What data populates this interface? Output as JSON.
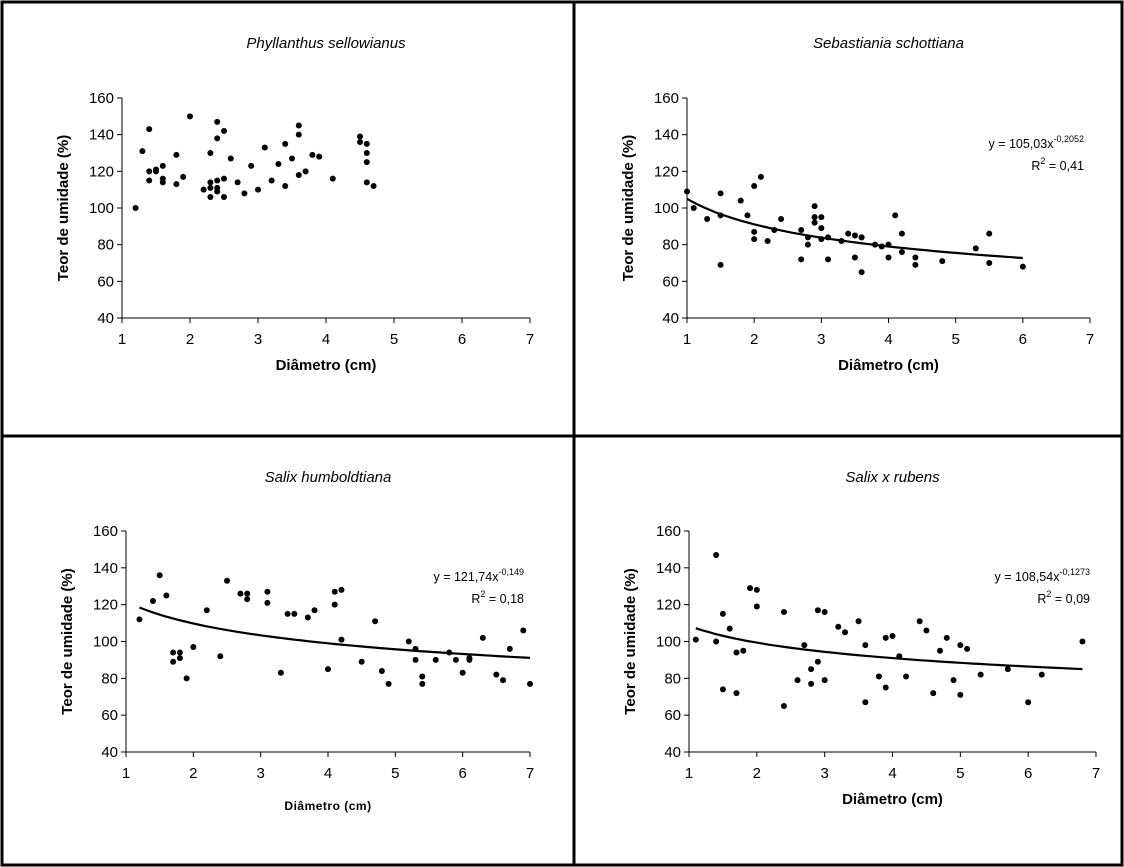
{
  "chart_data": [
    {
      "type": "scatter",
      "title": "Phyllanthus sellowianus",
      "xlabel": "Diâmetro (cm)",
      "ylabel": "Teor de umidade (%)",
      "xlim": [
        1,
        7
      ],
      "ylim": [
        40,
        160
      ],
      "xticks": [
        "1",
        "2",
        "3",
        "4",
        "5",
        "6",
        "7"
      ],
      "yticks": [
        "40",
        "60",
        "80",
        "100",
        "120",
        "140",
        "160"
      ],
      "x": [
        1.2,
        1.3,
        1.4,
        1.4,
        1.4,
        1.5,
        1.5,
        1.6,
        1.6,
        1.6,
        1.8,
        1.8,
        1.9,
        2.0,
        2.2,
        2.3,
        2.3,
        2.3,
        2.3,
        2.4,
        2.4,
        2.4,
        2.4,
        2.4,
        2.5,
        2.5,
        2.5,
        2.6,
        2.7,
        2.8,
        2.9,
        3.0,
        3.1,
        3.2,
        3.3,
        3.4,
        3.4,
        3.5,
        3.6,
        3.6,
        3.6,
        3.7,
        3.8,
        3.9,
        4.1,
        4.5,
        4.5,
        4.6,
        4.6,
        4.6,
        4.6,
        4.7
      ],
      "y": [
        100,
        131,
        143,
        120,
        115,
        120,
        121,
        116,
        114,
        123,
        129,
        113,
        117,
        150,
        110,
        106,
        130,
        114,
        111,
        147,
        138,
        115,
        111,
        109,
        142,
        116,
        106,
        127,
        114,
        108,
        123,
        110,
        133,
        115,
        124,
        135,
        112,
        127,
        145,
        140,
        118,
        120,
        129,
        128,
        116,
        139,
        136,
        135,
        130,
        125,
        114,
        112
      ],
      "trendline": null
    },
    {
      "type": "scatter",
      "title": "Sebastiania schottiana",
      "xlabel": "Diâmetro (cm)",
      "ylabel": "Teor de umidade (%)",
      "xlim": [
        1,
        7
      ],
      "ylim": [
        40,
        160
      ],
      "xticks": [
        "1",
        "2",
        "3",
        "4",
        "5",
        "6",
        "7"
      ],
      "yticks": [
        "40",
        "60",
        "80",
        "100",
        "120",
        "140",
        "160"
      ],
      "x": [
        1.0,
        1.1,
        1.3,
        1.5,
        1.5,
        1.5,
        1.8,
        1.9,
        2.0,
        2.0,
        2.0,
        2.1,
        2.2,
        2.3,
        2.4,
        2.7,
        2.7,
        2.8,
        2.8,
        2.9,
        2.9,
        2.9,
        3.0,
        3.0,
        3.0,
        3.1,
        3.1,
        3.3,
        3.4,
        3.5,
        3.5,
        3.6,
        3.6,
        3.6,
        3.8,
        3.9,
        4.0,
        4.0,
        4.1,
        4.2,
        4.2,
        4.4,
        4.4,
        4.8,
        5.3,
        5.5,
        5.5,
        6.0
      ],
      "y": [
        109,
        100,
        94,
        108,
        96,
        69,
        104,
        96,
        112,
        87,
        83,
        117,
        82,
        88,
        94,
        88,
        72,
        84,
        80,
        101,
        95,
        92,
        95,
        89,
        83,
        84,
        72,
        82,
        86,
        85,
        73,
        84,
        84,
        65,
        80,
        79,
        80,
        73,
        96,
        86,
        76,
        73,
        69,
        71,
        78,
        86,
        70,
        68
      ],
      "trendline": {
        "a": 105.03,
        "b": -0.2052,
        "x_from": 1.0,
        "x_to": 6.0
      },
      "equation": {
        "prefix": "y = 105,03x",
        "exponent": "-0,2052",
        "r2_label": "R",
        "r2_exp": "2",
        "r2_value": " = 0,41"
      }
    },
    {
      "type": "scatter",
      "title": "Salix humboldtiana",
      "xlabel": "Diâmetro (cm)",
      "ylabel": "Teor de umidade (%)",
      "xlim": [
        1,
        7
      ],
      "ylim": [
        40,
        160
      ],
      "xticks": [
        "1",
        "2",
        "3",
        "4",
        "5",
        "6",
        "7"
      ],
      "yticks": [
        "40",
        "60",
        "80",
        "100",
        "120",
        "140",
        "160"
      ],
      "x": [
        1.2,
        1.4,
        1.5,
        1.6,
        1.7,
        1.7,
        1.8,
        1.8,
        1.9,
        2.0,
        2.2,
        2.4,
        2.5,
        2.7,
        2.8,
        2.8,
        3.1,
        3.1,
        3.3,
        3.4,
        3.5,
        3.7,
        3.8,
        4.0,
        4.1,
        4.1,
        4.2,
        4.2,
        4.5,
        4.7,
        4.8,
        4.9,
        5.2,
        5.3,
        5.3,
        5.4,
        5.4,
        5.6,
        5.8,
        5.9,
        6.0,
        6.1,
        6.1,
        6.3,
        6.5,
        6.6,
        6.7,
        6.9,
        7.0
      ],
      "y": [
        112,
        122,
        136,
        125,
        94,
        89,
        94,
        91,
        80,
        97,
        117,
        92,
        133,
        126,
        126,
        123,
        127,
        121,
        83,
        115,
        115,
        113,
        117,
        85,
        127,
        120,
        128,
        101,
        89,
        111,
        84,
        77,
        100,
        96,
        90,
        81,
        77,
        90,
        94,
        90,
        83,
        91,
        90,
        102,
        82,
        79,
        96,
        106,
        77
      ],
      "trendline": {
        "a": 121.74,
        "b": -0.149,
        "x_from": 1.2,
        "x_to": 7.0
      },
      "equation": {
        "prefix": "y = 121,74x",
        "exponent": "-0,149",
        "r2_label": "R",
        "r2_exp": "2",
        "r2_value": " = 0,18"
      }
    },
    {
      "type": "scatter",
      "title": "Salix x rubens",
      "xlabel": "Diâmetro (cm)",
      "ylabel": "Teor de umidade (%)",
      "xlim": [
        1,
        7
      ],
      "ylim": [
        40,
        160
      ],
      "xticks": [
        "1",
        "2",
        "3",
        "4",
        "5",
        "6",
        "7"
      ],
      "yticks": [
        "40",
        "60",
        "80",
        "100",
        "120",
        "140",
        "160"
      ],
      "x": [
        1.1,
        1.4,
        1.4,
        1.5,
        1.5,
        1.6,
        1.7,
        1.7,
        1.8,
        1.9,
        2.0,
        2.0,
        2.4,
        2.4,
        2.6,
        2.7,
        2.8,
        2.8,
        2.9,
        2.9,
        3.0,
        3.0,
        3.2,
        3.3,
        3.5,
        3.6,
        3.6,
        3.8,
        3.9,
        3.9,
        4.0,
        4.1,
        4.2,
        4.4,
        4.5,
        4.6,
        4.7,
        4.8,
        4.9,
        5.0,
        5.0,
        5.1,
        5.3,
        5.7,
        6.0,
        6.2,
        6.8
      ],
      "y": [
        101,
        147,
        100,
        115,
        74,
        107,
        94,
        72,
        95,
        129,
        128,
        119,
        116,
        65,
        79,
        98,
        85,
        77,
        117,
        89,
        116,
        79,
        108,
        105,
        111,
        98,
        67,
        81,
        102,
        75,
        103,
        92,
        81,
        111,
        106,
        72,
        95,
        102,
        79,
        98,
        71,
        96,
        82,
        85,
        67,
        82,
        100
      ],
      "trendline": {
        "a": 108.54,
        "b": -0.1273,
        "x_from": 1.1,
        "x_to": 6.8
      },
      "equation": {
        "prefix": "y = 108,54x",
        "exponent": "-0,1273",
        "r2_label": "R",
        "r2_exp": "2",
        "r2_value": " = 0,09"
      }
    }
  ]
}
